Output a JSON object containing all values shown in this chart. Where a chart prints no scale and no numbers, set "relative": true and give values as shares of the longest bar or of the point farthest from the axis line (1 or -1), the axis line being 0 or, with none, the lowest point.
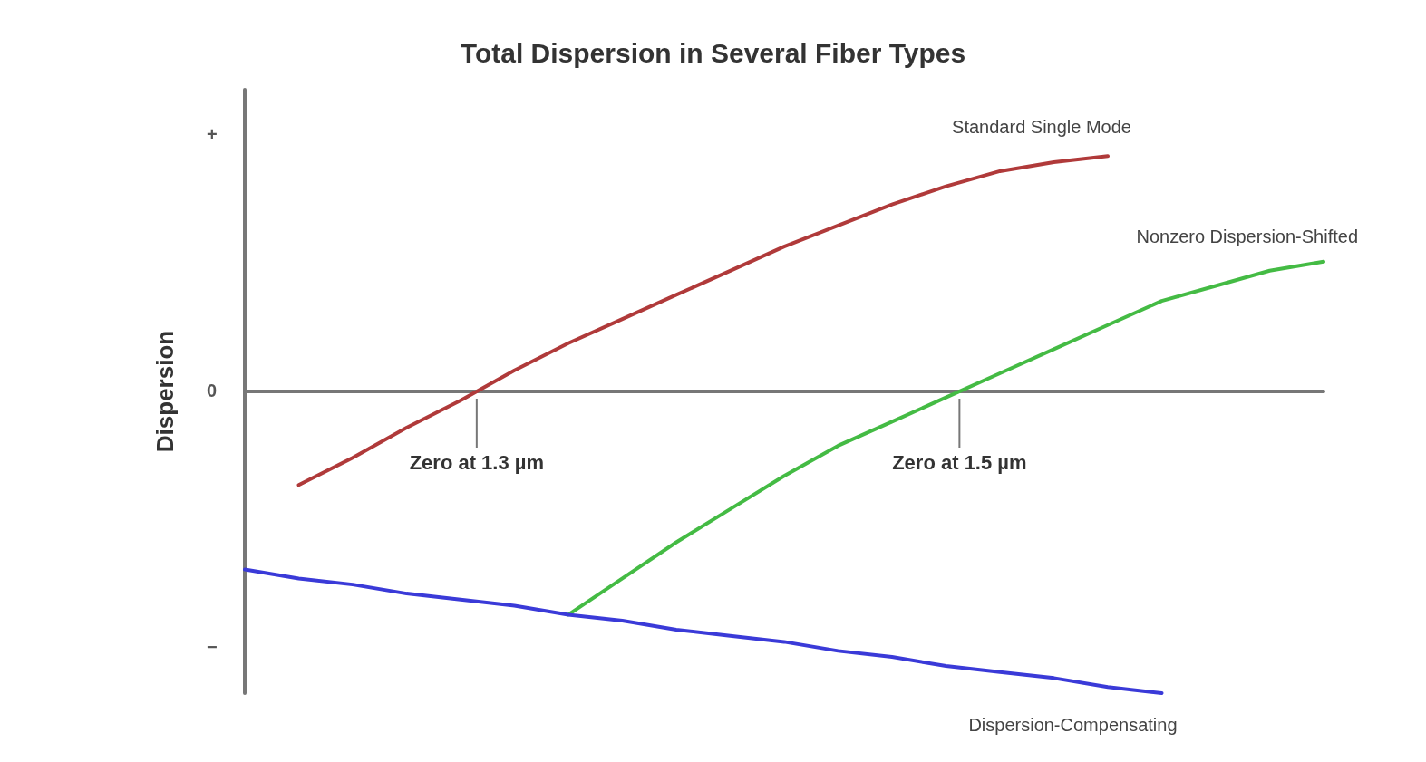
{
  "chart_data": {
    "type": "line",
    "title": "Total Dispersion in Several Fiber Types",
    "ylabel": "Dispersion",
    "relative": true,
    "grid": false,
    "legend": false,
    "marker": "none",
    "categories": [
      null,
      null,
      null,
      null,
      null,
      null,
      null,
      null,
      null,
      null,
      null,
      null,
      null,
      null,
      null,
      null,
      null,
      null,
      null,
      null,
      null
    ],
    "series": [
      {
        "name": "Standard Single Mode",
        "color": "#b03a3a",
        "values": [
          null,
          -0.31,
          -0.22,
          -0.12,
          -0.03,
          0.07,
          0.16,
          0.24,
          0.32,
          0.4,
          0.48,
          0.55,
          0.62,
          0.68,
          0.73,
          0.76,
          0.78,
          null,
          null,
          null,
          null
        ]
      },
      {
        "name": "Nonzero Dispersion-Shifted",
        "color": "#44bb44",
        "values": [
          null,
          null,
          null,
          null,
          null,
          null,
          -0.74,
          -0.62,
          -0.5,
          -0.39,
          -0.28,
          -0.18,
          -0.1,
          -0.02,
          0.06,
          0.14,
          0.22,
          0.3,
          0.35,
          0.4,
          0.43
        ]
      },
      {
        "name": "Dispersion-Compensating",
        "color": "#3a3ad8",
        "values": [
          -0.59,
          -0.62,
          -0.64,
          -0.67,
          -0.69,
          -0.71,
          -0.74,
          -0.76,
          -0.79,
          -0.81,
          -0.83,
          -0.86,
          -0.88,
          -0.91,
          -0.93,
          -0.95,
          -0.98,
          -1,
          null,
          null,
          null
        ]
      }
    ],
    "annotations": [
      "+",
      "0",
      "−",
      {
        "text": "Zero at 1.3 µm",
        "y": 0
      },
      {
        "text": "Zero at 1.5 µm",
        "y": 0
      }
    ]
  }
}
